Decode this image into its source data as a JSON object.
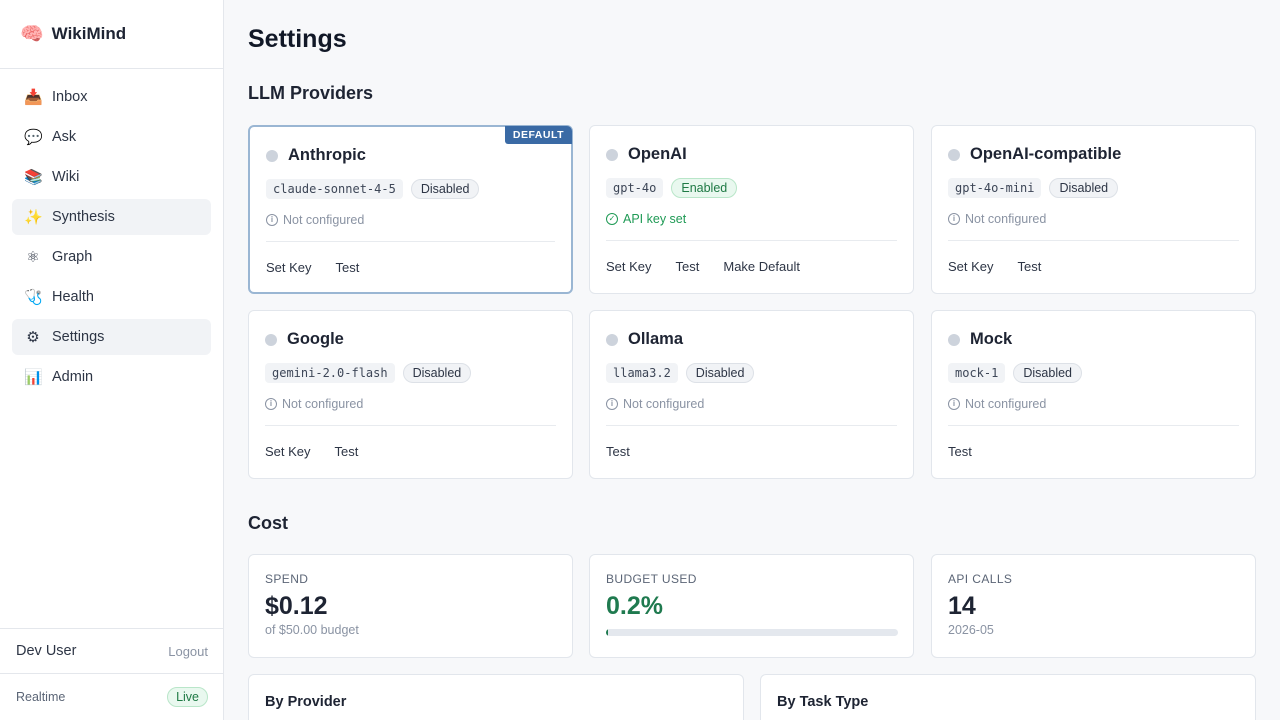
{
  "app": {
    "logo_icon": "brain-emoji",
    "logo_glyph": "🧠",
    "name": "WikiMind"
  },
  "sidebar": {
    "items": [
      {
        "label": "Inbox",
        "icon": "inbox-tray-icon",
        "glyph": "📥",
        "active": false
      },
      {
        "label": "Ask",
        "icon": "speech-bubble-icon",
        "glyph": "💬",
        "active": false
      },
      {
        "label": "Wiki",
        "icon": "books-icon",
        "glyph": "📚",
        "active": false
      },
      {
        "label": "Synthesis",
        "icon": "sparkles-icon",
        "glyph": "✨",
        "active": true
      },
      {
        "label": "Graph",
        "icon": "atom-icon",
        "glyph": "⚛",
        "active": false
      },
      {
        "label": "Health",
        "icon": "stethoscope-icon",
        "glyph": "🩺",
        "active": false
      },
      {
        "label": "Settings",
        "icon": "gear-icon",
        "glyph": "⚙",
        "active": true
      },
      {
        "label": "Admin",
        "icon": "bar-chart-icon",
        "glyph": "📊",
        "active": false
      }
    ],
    "user_name": "Dev User",
    "logout_label": "Logout",
    "realtime_label": "Realtime",
    "realtime_status": "Live"
  },
  "page": {
    "title": "Settings"
  },
  "providers_section": {
    "title": "LLM Providers",
    "default_tag": "DEFAULT",
    "providers": [
      {
        "name": "Anthropic",
        "model": "claude-sonnet-4-5",
        "status": "Disabled",
        "config": "Not configured",
        "actions": [
          "Set Key",
          "Test"
        ],
        "is_default": true
      },
      {
        "name": "OpenAI",
        "model": "gpt-4o",
        "status": "Enabled",
        "config": "API key set",
        "actions": [
          "Set Key",
          "Test",
          "Make Default"
        ],
        "is_default": false
      },
      {
        "name": "OpenAI-compatible",
        "model": "gpt-4o-mini",
        "status": "Disabled",
        "config": "Not configured",
        "actions": [
          "Set Key",
          "Test"
        ],
        "is_default": false
      },
      {
        "name": "Google",
        "model": "gemini-2.0-flash",
        "status": "Disabled",
        "config": "Not configured",
        "actions": [
          "Set Key",
          "Test"
        ],
        "is_default": false
      },
      {
        "name": "Ollama",
        "model": "llama3.2",
        "status": "Disabled",
        "config": "Not configured",
        "actions": [
          "Test"
        ],
        "is_default": false
      },
      {
        "name": "Mock",
        "model": "mock-1",
        "status": "Disabled",
        "config": "Not configured",
        "actions": [
          "Test"
        ],
        "is_default": false
      }
    ]
  },
  "cost_section": {
    "title": "Cost",
    "spend": {
      "label": "SPEND",
      "value": "$0.12",
      "sub": "of $50.00 budget"
    },
    "budget": {
      "label": "BUDGET USED",
      "value": "0.2%",
      "fraction": 0.002
    },
    "calls": {
      "label": "API CALLS",
      "value": "14",
      "sub": "2026-05"
    },
    "by_provider_title": "By Provider",
    "by_task_title": "By Task Type"
  },
  "colors": {
    "accent": "#3a6aa5",
    "success": "#1f7a4f",
    "enabled_green": "#1f9a55"
  }
}
